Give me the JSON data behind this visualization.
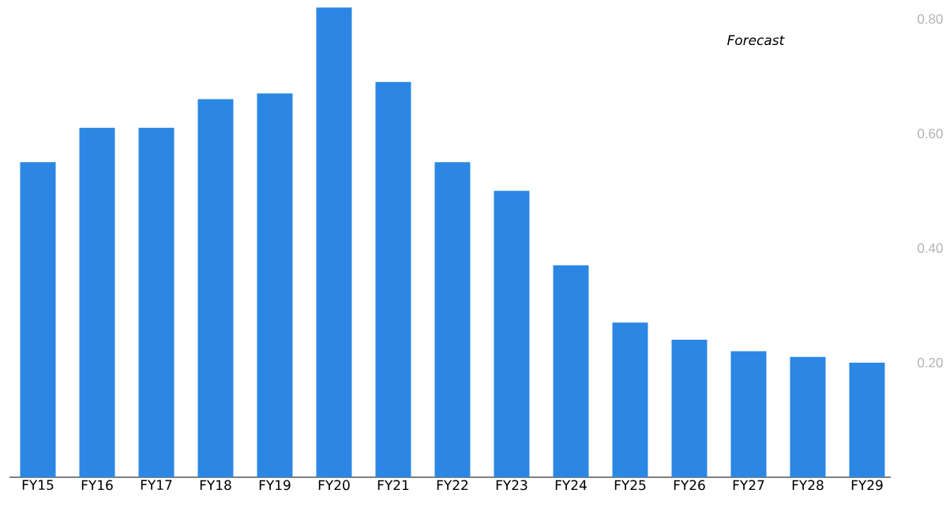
{
  "chart_data": {
    "type": "bar",
    "categories": [
      "FY15",
      "FY16",
      "FY17",
      "FY18",
      "FY19",
      "FY20",
      "FY21",
      "FY22",
      "FY23",
      "FY24",
      "FY25",
      "FY26",
      "FY27",
      "FY28",
      "FY29"
    ],
    "values": [
      0.55,
      0.61,
      0.61,
      0.66,
      0.67,
      0.82,
      0.69,
      0.55,
      0.5,
      0.37,
      0.27,
      0.24,
      0.22,
      0.21,
      0.2
    ],
    "color": "#2b87e3",
    "ylim": [
      0,
      0.82
    ],
    "yticks": [
      {
        "value": 0.2,
        "label": "0.20"
      },
      {
        "value": 0.4,
        "label": "0.40"
      },
      {
        "value": 0.6,
        "label": "0.60"
      },
      {
        "value": 0.8,
        "label": "0.80"
      }
    ],
    "annotations": [
      "Forecast"
    ]
  }
}
